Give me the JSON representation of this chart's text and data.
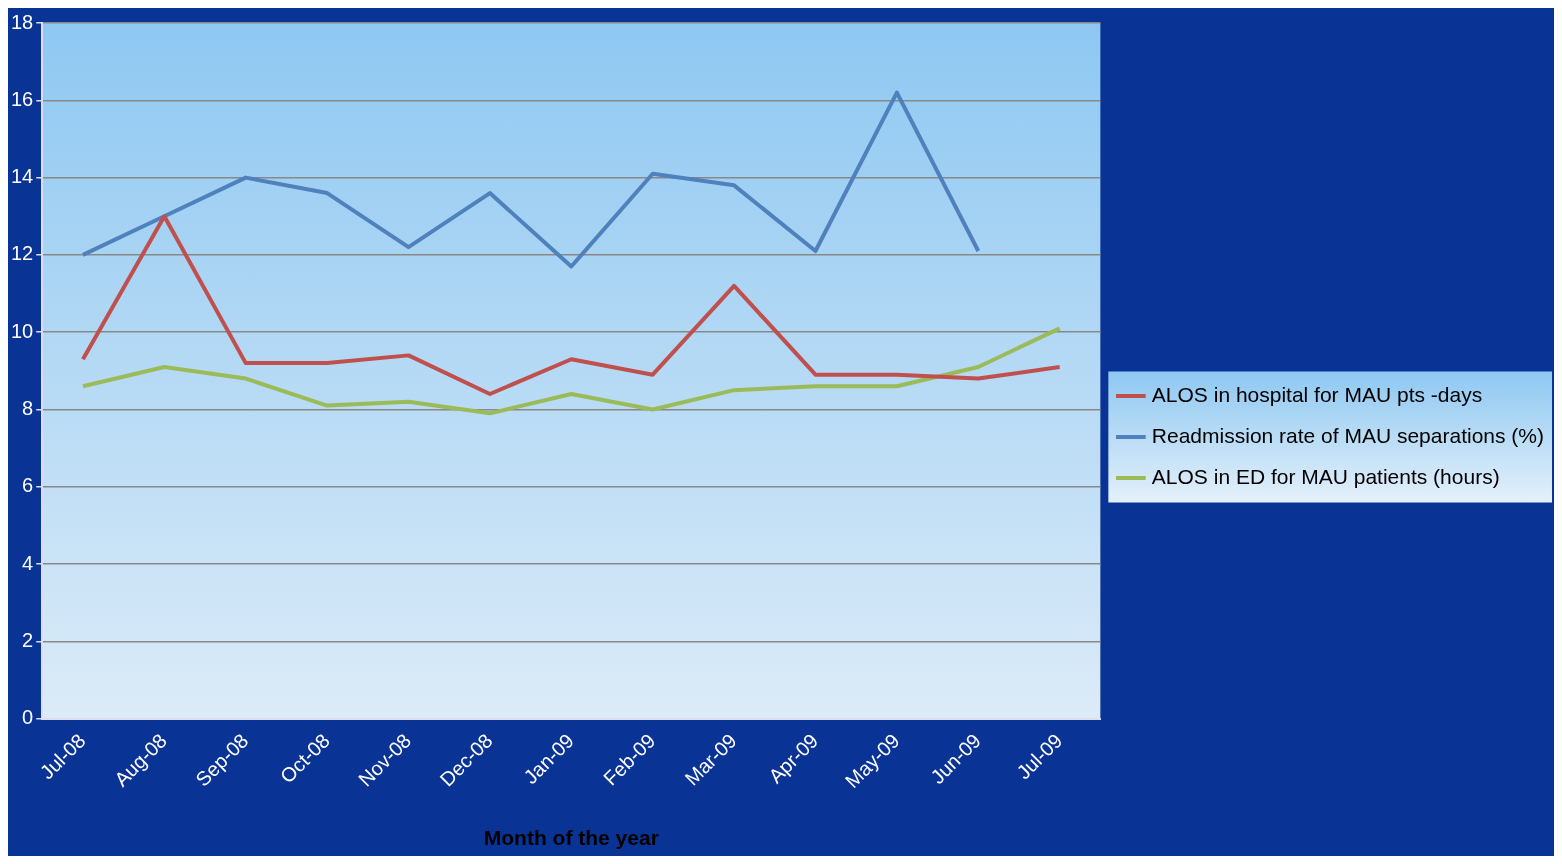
{
  "chart_data": {
    "type": "line",
    "xlabel": "Month of the year",
    "categories": [
      "Jul-08",
      "Aug-08",
      "Sep-08",
      "Oct-08",
      "Nov-08",
      "Dec-08",
      "Jan-09",
      "Feb-09",
      "Mar-09",
      "Apr-09",
      "May-09",
      "Jun-09",
      "Jul-09"
    ],
    "series": [
      {
        "name": "ALOS in hospital for MAU pts -days",
        "color": "#c0504d",
        "values": [
          9.3,
          13.0,
          9.2,
          9.2,
          9.4,
          8.4,
          9.3,
          8.9,
          11.2,
          8.9,
          8.9,
          8.8,
          9.1
        ]
      },
      {
        "name": "Readmission rate of MAU separations (%)",
        "color": "#4f81bd",
        "values": [
          12.0,
          13.0,
          14.0,
          13.6,
          12.2,
          13.6,
          11.7,
          14.1,
          13.8,
          12.1,
          16.2,
          12.1,
          null
        ]
      },
      {
        "name": "ALOS in ED for MAU patients (hours)",
        "color": "#9bbb59",
        "values": [
          8.6,
          9.1,
          8.8,
          8.1,
          8.2,
          7.9,
          8.4,
          8.0,
          8.5,
          8.6,
          8.6,
          9.1,
          10.1
        ]
      }
    ],
    "ylim": [
      0,
      18
    ],
    "yticks": [
      0,
      2,
      4,
      6,
      8,
      10,
      12,
      14,
      16,
      18
    ],
    "grid": "y",
    "legend": "right",
    "marker": "none",
    "line_style": "solid"
  }
}
